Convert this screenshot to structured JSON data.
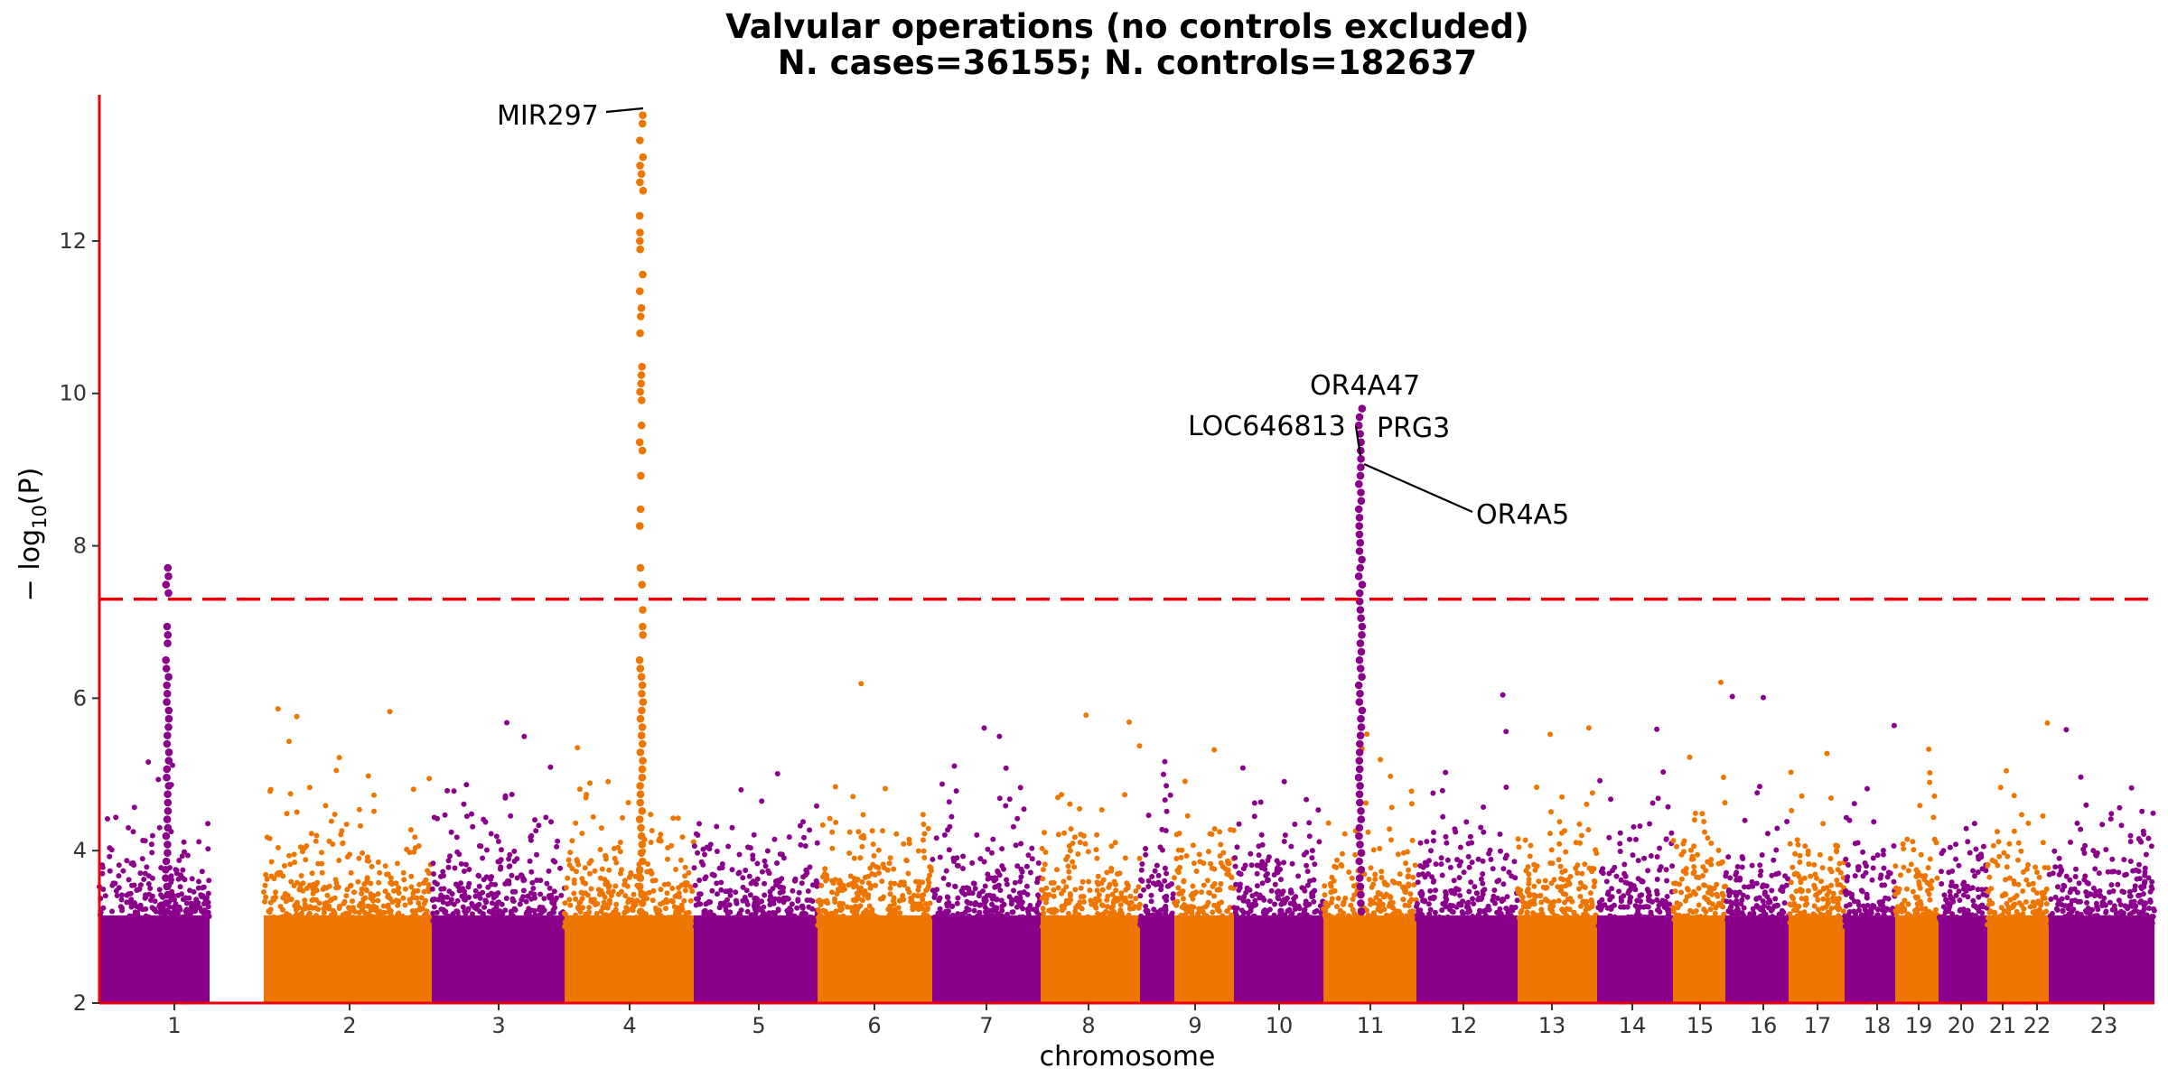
{
  "chart_data": {
    "type": "scatter",
    "title_line1": "Valvular operations (no controls excluded)",
    "title_line2": "N. cases=36155; N. controls=182637",
    "xlabel": "chromosome",
    "ylabel_prefix": "− log",
    "ylabel_sub": "10",
    "ylabel_suffix": "(P)",
    "ylim": [
      2,
      13.8
    ],
    "y_ticks": [
      "2",
      "4",
      "6",
      "8",
      "10",
      "12"
    ],
    "significance_threshold": 7.3,
    "colors": {
      "odd": "#8b008b",
      "even": "#ee7600",
      "axis": "#e8000b",
      "threshold": "#e8000b"
    },
    "chromosomes": [
      "1",
      "2",
      "3",
      "4",
      "5",
      "6",
      "7",
      "8",
      "9",
      "10",
      "11",
      "12",
      "13",
      "14",
      "15",
      "16",
      "17",
      "18",
      "19",
      "20",
      "21",
      "22",
      "23"
    ],
    "peaks": [
      {
        "chromosome": "1",
        "max": 7.75
      },
      {
        "chromosome": "4",
        "max": 13.75
      },
      {
        "chromosome": "11",
        "max": 9.9
      }
    ],
    "annotations": [
      {
        "label": "MIR297",
        "chromosome": "4",
        "y": 13.7
      },
      {
        "label": "OR4A47",
        "chromosome": "11",
        "y": 9.9
      },
      {
        "label": "LOC646813",
        "chromosome": "11",
        "y": 9.2
      },
      {
        "label": "PRG3",
        "chromosome": "11",
        "y": 9.45
      },
      {
        "label": "OR4A5",
        "chromosome": "11",
        "y": 9.1
      }
    ]
  }
}
